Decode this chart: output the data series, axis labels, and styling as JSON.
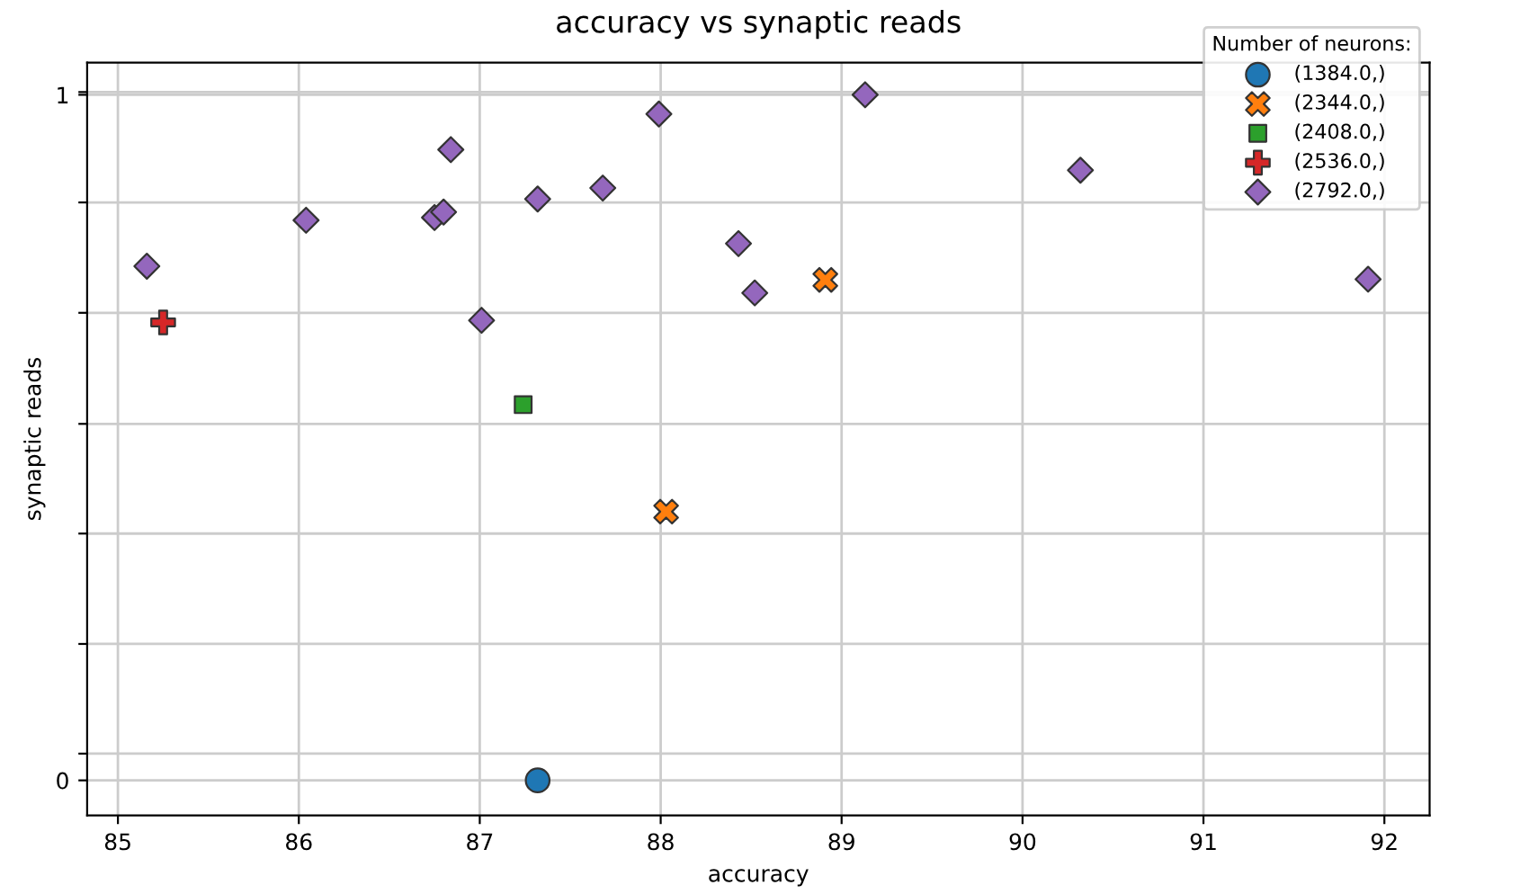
{
  "chart_data": {
    "type": "scatter",
    "title": "accuracy vs synaptic reads",
    "xlabel": "accuracy",
    "ylabel": "synaptic reads",
    "legend_title": "Number of neurons:",
    "legend": "top right",
    "grid": true,
    "xlim": [
      84.83,
      92.25
    ],
    "xticks": [
      85,
      86,
      87,
      88,
      89,
      90,
      91,
      92
    ],
    "ylim": [
      -0.051,
      1.047
    ],
    "yticks": [
      {
        "value": 0,
        "label": "0"
      },
      {
        "value": 1,
        "label": "1"
      },
      {
        "value": 0.039,
        "label": null
      },
      {
        "value": 0.199,
        "label": null
      },
      {
        "value": 0.36,
        "label": null
      },
      {
        "value": 0.52,
        "label": null
      },
      {
        "value": 0.682,
        "label": null
      },
      {
        "value": 0.843,
        "label": null
      },
      {
        "value": 1.004,
        "label": null
      }
    ],
    "series": [
      {
        "name": "(1384.0,)",
        "color": "#1f77b4",
        "marker": "circle",
        "x": [
          87.32
        ],
        "values": [
          0.0
        ]
      },
      {
        "name": "(2344.0,)",
        "color": "#ff7f0e",
        "marker": "cross",
        "x": [
          88.03,
          88.91
        ],
        "values": [
          0.392,
          0.73
        ]
      },
      {
        "name": "(2408.0,)",
        "color": "#2ca02c",
        "marker": "square",
        "x": [
          87.24
        ],
        "values": [
          0.548
        ]
      },
      {
        "name": "(2536.0,)",
        "color": "#d62728",
        "marker": "plus",
        "x": [
          85.25
        ],
        "values": [
          0.668
        ]
      },
      {
        "name": "(2792.0,)",
        "color": "#9467bd",
        "marker": "diamond",
        "x": [
          85.16,
          86.04,
          86.75,
          86.8,
          86.84,
          87.01,
          87.32,
          87.68,
          87.99,
          88.43,
          88.52,
          89.13,
          90.32,
          91.91
        ],
        "values": [
          0.75,
          0.817,
          0.821,
          0.829,
          0.92,
          0.671,
          0.848,
          0.864,
          0.972,
          0.783,
          0.711,
          1.0,
          0.89,
          0.731
        ]
      }
    ]
  }
}
